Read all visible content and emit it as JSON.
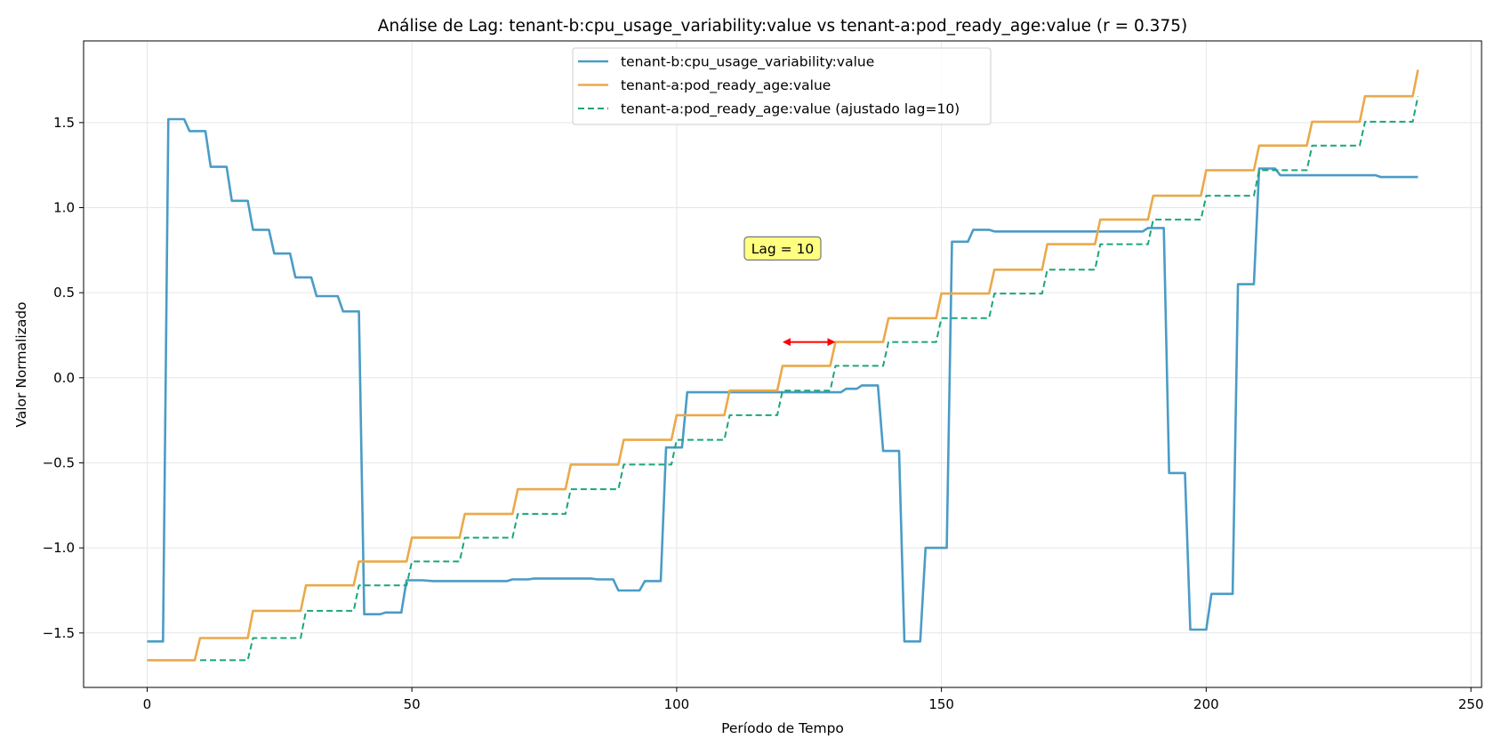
{
  "chart_data": {
    "type": "line",
    "title": "Análise de Lag: tenant-b:cpu_usage_variability:value vs tenant-a:pod_ready_age:value (r = 0.375)",
    "xlabel": "Período de Tempo",
    "ylabel": "Valor Normalizado",
    "xlim": [
      -12,
      252
    ],
    "ylim": [
      -1.82,
      1.98
    ],
    "xticks": [
      0,
      50,
      100,
      150,
      200,
      250
    ],
    "yticks": [
      -1.5,
      -1.0,
      -0.5,
      0.0,
      0.5,
      1.0,
      1.5
    ],
    "ytick_labels": [
      "−1.5",
      "−1.0",
      "−0.5",
      "0.0",
      "0.5",
      "1.0",
      "1.5"
    ],
    "grid": true,
    "legend_position": "top-center",
    "colors": {
      "blue": "#4a9cc6",
      "orange": "#eaa94a",
      "green": "#1aa67a",
      "annotation_box": "#ffff80",
      "arrow": "#ff0000"
    },
    "series": [
      {
        "name": "tenant-b:cpu_usage_variability:value",
        "style": "solid",
        "color": "#4a9cc6",
        "points": [
          [
            0,
            -1.55
          ],
          [
            3,
            -1.55
          ],
          [
            4,
            1.52
          ],
          [
            7,
            1.52
          ],
          [
            8,
            1.45
          ],
          [
            11,
            1.45
          ],
          [
            12,
            1.24
          ],
          [
            15,
            1.24
          ],
          [
            16,
            1.04
          ],
          [
            19,
            1.04
          ],
          [
            20,
            0.87
          ],
          [
            23,
            0.87
          ],
          [
            24,
            0.73
          ],
          [
            27,
            0.73
          ],
          [
            28,
            0.59
          ],
          [
            31,
            0.59
          ],
          [
            32,
            0.48
          ],
          [
            36,
            0.48
          ],
          [
            37,
            0.39
          ],
          [
            40,
            0.39
          ],
          [
            41,
            -1.39
          ],
          [
            44,
            -1.39
          ],
          [
            45,
            -1.38
          ],
          [
            48,
            -1.38
          ],
          [
            49,
            -1.19
          ],
          [
            52,
            -1.19
          ],
          [
            54,
            -1.195
          ],
          [
            68,
            -1.195
          ],
          [
            69,
            -1.185
          ],
          [
            72,
            -1.185
          ],
          [
            73,
            -1.18
          ],
          [
            84,
            -1.18
          ],
          [
            85,
            -1.185
          ],
          [
            88,
            -1.185
          ],
          [
            89,
            -1.25
          ],
          [
            93,
            -1.25
          ],
          [
            94,
            -1.195
          ],
          [
            97,
            -1.195
          ],
          [
            98,
            -0.41
          ],
          [
            101,
            -0.41
          ],
          [
            102,
            -0.085
          ],
          [
            131,
            -0.085
          ],
          [
            132,
            -0.065
          ],
          [
            134,
            -0.065
          ],
          [
            135,
            -0.045
          ],
          [
            138,
            -0.045
          ],
          [
            139,
            -0.43
          ],
          [
            142,
            -0.43
          ],
          [
            143,
            -1.55
          ],
          [
            146,
            -1.55
          ],
          [
            147,
            -1.0
          ],
          [
            151,
            -1.0
          ],
          [
            152,
            0.8
          ],
          [
            155,
            0.8
          ],
          [
            156,
            0.87
          ],
          [
            159,
            0.87
          ],
          [
            160,
            0.86
          ],
          [
            188,
            0.86
          ],
          [
            189,
            0.88
          ],
          [
            192,
            0.88
          ],
          [
            193,
            -0.56
          ],
          [
            196,
            -0.56
          ],
          [
            197,
            -1.48
          ],
          [
            200,
            -1.48
          ],
          [
            201,
            -1.27
          ],
          [
            205,
            -1.27
          ],
          [
            206,
            0.55
          ],
          [
            209,
            0.55
          ],
          [
            210,
            1.23
          ],
          [
            213,
            1.23
          ],
          [
            214,
            1.19
          ],
          [
            232,
            1.19
          ],
          [
            233,
            1.18
          ],
          [
            240,
            1.18
          ]
        ]
      },
      {
        "name": "tenant-a:pod_ready_age:value",
        "style": "solid",
        "color": "#eaa94a",
        "points": [
          [
            0,
            -1.66
          ],
          [
            9,
            -1.66
          ],
          [
            10,
            -1.53
          ],
          [
            19,
            -1.53
          ],
          [
            20,
            -1.37
          ],
          [
            29,
            -1.37
          ],
          [
            30,
            -1.22
          ],
          [
            39,
            -1.22
          ],
          [
            40,
            -1.08
          ],
          [
            49,
            -1.08
          ],
          [
            50,
            -0.94
          ],
          [
            59,
            -0.94
          ],
          [
            60,
            -0.8
          ],
          [
            69,
            -0.8
          ],
          [
            70,
            -0.655
          ],
          [
            79,
            -0.655
          ],
          [
            80,
            -0.51
          ],
          [
            89,
            -0.51
          ],
          [
            90,
            -0.365
          ],
          [
            99,
            -0.365
          ],
          [
            100,
            -0.22
          ],
          [
            109,
            -0.22
          ],
          [
            110,
            -0.075
          ],
          [
            119,
            -0.075
          ],
          [
            120,
            0.07
          ],
          [
            129,
            0.07
          ],
          [
            130,
            0.21
          ],
          [
            139,
            0.21
          ],
          [
            140,
            0.35
          ],
          [
            149,
            0.35
          ],
          [
            150,
            0.495
          ],
          [
            159,
            0.495
          ],
          [
            160,
            0.635
          ],
          [
            169,
            0.635
          ],
          [
            170,
            0.785
          ],
          [
            179,
            0.785
          ],
          [
            180,
            0.93
          ],
          [
            189,
            0.93
          ],
          [
            190,
            1.07
          ],
          [
            199,
            1.07
          ],
          [
            200,
            1.22
          ],
          [
            209,
            1.22
          ],
          [
            210,
            1.365
          ],
          [
            219,
            1.365
          ],
          [
            220,
            1.505
          ],
          [
            229,
            1.505
          ],
          [
            230,
            1.655
          ],
          [
            239,
            1.655
          ],
          [
            240,
            1.81
          ]
        ]
      },
      {
        "name": "tenant-a:pod_ready_age:value (ajustado lag=10)",
        "style": "dashed",
        "color": "#1aa67a",
        "points": [
          [
            10,
            -1.66
          ],
          [
            19,
            -1.66
          ],
          [
            20,
            -1.53
          ],
          [
            29,
            -1.53
          ],
          [
            30,
            -1.37
          ],
          [
            39,
            -1.37
          ],
          [
            40,
            -1.22
          ],
          [
            49,
            -1.22
          ],
          [
            50,
            -1.08
          ],
          [
            59,
            -1.08
          ],
          [
            60,
            -0.94
          ],
          [
            69,
            -0.94
          ],
          [
            70,
            -0.8
          ],
          [
            79,
            -0.8
          ],
          [
            80,
            -0.655
          ],
          [
            89,
            -0.655
          ],
          [
            90,
            -0.51
          ],
          [
            99,
            -0.51
          ],
          [
            100,
            -0.365
          ],
          [
            109,
            -0.365
          ],
          [
            110,
            -0.22
          ],
          [
            119,
            -0.22
          ],
          [
            120,
            -0.075
          ],
          [
            129,
            -0.075
          ],
          [
            130,
            0.07
          ],
          [
            139,
            0.07
          ],
          [
            140,
            0.21
          ],
          [
            149,
            0.21
          ],
          [
            150,
            0.35
          ],
          [
            159,
            0.35
          ],
          [
            160,
            0.495
          ],
          [
            169,
            0.495
          ],
          [
            170,
            0.635
          ],
          [
            179,
            0.635
          ],
          [
            180,
            0.785
          ],
          [
            189,
            0.785
          ],
          [
            190,
            0.93
          ],
          [
            199,
            0.93
          ],
          [
            200,
            1.07
          ],
          [
            209,
            1.07
          ],
          [
            210,
            1.22
          ],
          [
            219,
            1.22
          ],
          [
            220,
            1.365
          ],
          [
            229,
            1.365
          ],
          [
            230,
            1.505
          ],
          [
            239,
            1.505
          ],
          [
            240,
            1.655
          ]
        ]
      }
    ],
    "annotations": [
      {
        "text": "Lag = 10",
        "x": 120,
        "y": 0.76
      },
      {
        "type": "double-arrow",
        "x_start": 120,
        "x_end": 130,
        "y": 0.21
      }
    ]
  }
}
